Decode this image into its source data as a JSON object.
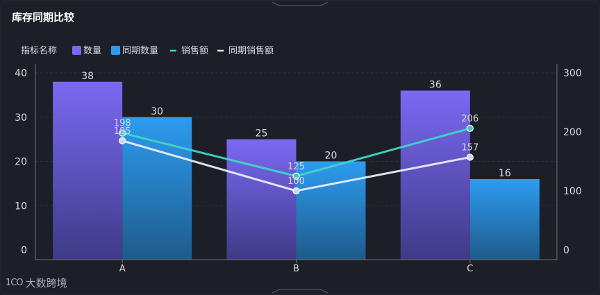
{
  "title": "库存同期比较",
  "watermark": {
    "logo": "1CO",
    "text": "大数跨境"
  },
  "legend_prefix": "指标名称",
  "colors": {
    "bar1_top": "#7b69f3",
    "bar1_bottom": "#3f3a86",
    "bar2_top": "#2d9cf0",
    "bar2_bottom": "#1f5a8a",
    "line1": "#3fd6c8",
    "line2": "#e6edf7",
    "axis": "#6f7585",
    "grid": "#2c303a",
    "label": "#d7dbe6"
  },
  "chart_data": {
    "type": "bar",
    "categories": [
      "A",
      "B",
      "C"
    ],
    "series": [
      {
        "name": "数量",
        "kind": "bar",
        "axis": "left",
        "values": [
          38,
          25,
          36
        ]
      },
      {
        "name": "同期数量",
        "kind": "bar",
        "axis": "left",
        "values": [
          30,
          20,
          16
        ]
      },
      {
        "name": "销售额",
        "kind": "line",
        "axis": "right",
        "values": [
          198,
          125,
          206
        ]
      },
      {
        "name": "同期销售额",
        "kind": "line",
        "axis": "right",
        "values": [
          185,
          100,
          157
        ]
      }
    ],
    "yleft": {
      "ticks": [
        0,
        10,
        20,
        30,
        40
      ],
      "range": [
        0,
        40
      ]
    },
    "yright": {
      "ticks": [
        0,
        100,
        200,
        300
      ],
      "range": [
        0,
        300
      ]
    },
    "title": "库存同期比较",
    "grid": true,
    "legend_position": "top-left"
  }
}
